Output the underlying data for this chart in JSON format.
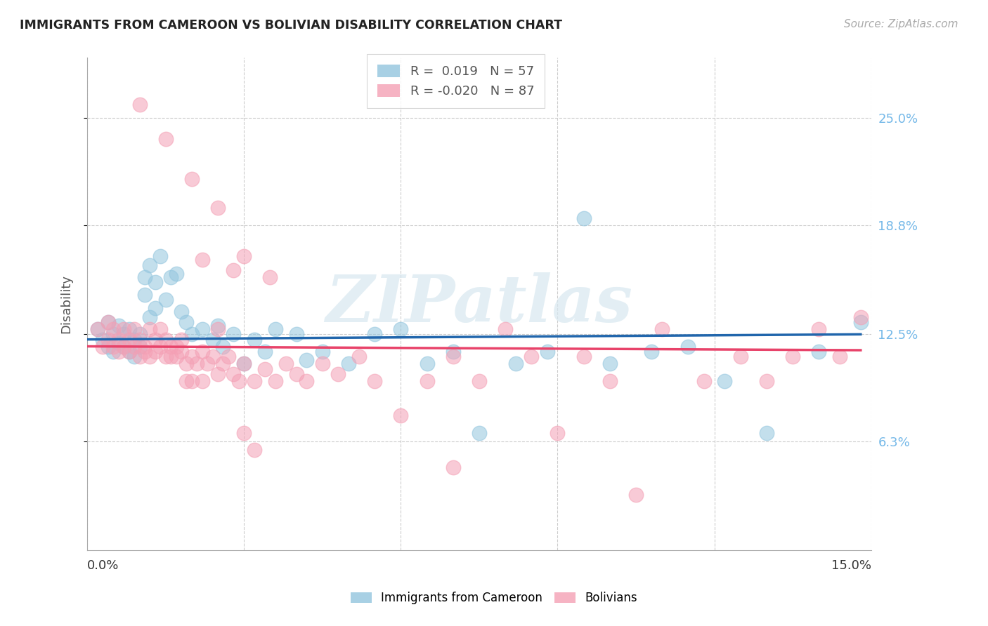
{
  "title": "IMMIGRANTS FROM CAMEROON VS BOLIVIAN DISABILITY CORRELATION CHART",
  "source": "Source: ZipAtlas.com",
  "ylabel": "Disability",
  "ytick_labels": [
    "6.3%",
    "12.5%",
    "18.8%",
    "25.0%"
  ],
  "ytick_values": [
    0.063,
    0.125,
    0.188,
    0.25
  ],
  "xlim": [
    0.0,
    0.15
  ],
  "ylim": [
    0.0,
    0.285
  ],
  "watermark": "ZIPatlas",
  "legend_blue_r": "R =  0.019",
  "legend_blue_n": "N = 57",
  "legend_pink_r": "R = -0.020",
  "legend_pink_n": "N = 87",
  "blue_color": "#92c5de",
  "pink_color": "#f4a0b5",
  "trend_blue": "#2166ac",
  "trend_pink": "#e8436a",
  "blue_x": [
    0.002,
    0.003,
    0.004,
    0.004,
    0.005,
    0.005,
    0.006,
    0.006,
    0.007,
    0.007,
    0.008,
    0.008,
    0.009,
    0.009,
    0.01,
    0.01,
    0.011,
    0.011,
    0.012,
    0.012,
    0.013,
    0.013,
    0.014,
    0.015,
    0.016,
    0.017,
    0.018,
    0.019,
    0.02,
    0.022,
    0.024,
    0.025,
    0.026,
    0.028,
    0.03,
    0.032,
    0.034,
    0.036,
    0.04,
    0.042,
    0.045,
    0.05,
    0.055,
    0.06,
    0.065,
    0.07,
    0.075,
    0.082,
    0.088,
    0.095,
    0.1,
    0.108,
    0.115,
    0.122,
    0.13,
    0.14,
    0.148
  ],
  "blue_y": [
    0.128,
    0.122,
    0.118,
    0.132,
    0.125,
    0.115,
    0.12,
    0.13,
    0.118,
    0.125,
    0.115,
    0.128,
    0.122,
    0.112,
    0.125,
    0.118,
    0.158,
    0.148,
    0.165,
    0.135,
    0.14,
    0.155,
    0.17,
    0.145,
    0.158,
    0.16,
    0.138,
    0.132,
    0.125,
    0.128,
    0.122,
    0.13,
    0.118,
    0.125,
    0.108,
    0.122,
    0.115,
    0.128,
    0.125,
    0.11,
    0.115,
    0.108,
    0.125,
    0.128,
    0.108,
    0.115,
    0.068,
    0.108,
    0.115,
    0.192,
    0.108,
    0.115,
    0.118,
    0.098,
    0.068,
    0.115,
    0.132
  ],
  "pink_x": [
    0.002,
    0.003,
    0.004,
    0.004,
    0.005,
    0.005,
    0.006,
    0.006,
    0.007,
    0.007,
    0.008,
    0.008,
    0.009,
    0.009,
    0.01,
    0.01,
    0.011,
    0.011,
    0.012,
    0.012,
    0.013,
    0.013,
    0.014,
    0.014,
    0.015,
    0.015,
    0.016,
    0.016,
    0.017,
    0.017,
    0.018,
    0.018,
    0.019,
    0.019,
    0.02,
    0.02,
    0.021,
    0.022,
    0.022,
    0.023,
    0.024,
    0.025,
    0.026,
    0.027,
    0.028,
    0.029,
    0.03,
    0.032,
    0.034,
    0.036,
    0.038,
    0.04,
    0.042,
    0.045,
    0.048,
    0.052,
    0.055,
    0.06,
    0.065,
    0.07,
    0.075,
    0.08,
    0.085,
    0.09,
    0.095,
    0.1,
    0.105,
    0.11,
    0.118,
    0.125,
    0.13,
    0.135,
    0.14,
    0.144,
    0.148,
    0.01,
    0.015,
    0.02,
    0.025,
    0.022,
    0.028,
    0.03,
    0.035,
    0.025,
    0.03,
    0.032,
    0.07
  ],
  "pink_y": [
    0.128,
    0.118,
    0.122,
    0.132,
    0.118,
    0.128,
    0.115,
    0.122,
    0.118,
    0.128,
    0.122,
    0.115,
    0.118,
    0.128,
    0.112,
    0.122,
    0.118,
    0.115,
    0.128,
    0.112,
    0.115,
    0.122,
    0.118,
    0.128,
    0.112,
    0.122,
    0.118,
    0.112,
    0.118,
    0.112,
    0.115,
    0.122,
    0.098,
    0.108,
    0.098,
    0.112,
    0.108,
    0.115,
    0.098,
    0.108,
    0.112,
    0.102,
    0.108,
    0.112,
    0.102,
    0.098,
    0.108,
    0.098,
    0.105,
    0.098,
    0.108,
    0.102,
    0.098,
    0.108,
    0.102,
    0.112,
    0.098,
    0.078,
    0.098,
    0.112,
    0.098,
    0.128,
    0.112,
    0.068,
    0.112,
    0.098,
    0.032,
    0.128,
    0.098,
    0.112,
    0.098,
    0.112,
    0.128,
    0.112,
    0.135,
    0.258,
    0.238,
    0.215,
    0.198,
    0.168,
    0.162,
    0.17,
    0.158,
    0.128,
    0.068,
    0.058,
    0.048
  ]
}
